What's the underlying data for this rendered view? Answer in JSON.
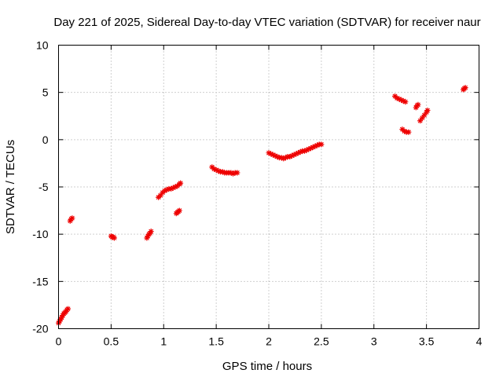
{
  "chart_data": {
    "type": "scatter",
    "title": "Day 221 of 2025, Sidereal Day-to-day VTEC variation (SDTVAR) for receiver naur",
    "xlabel": "GPS time / hours",
    "ylabel": "SDTVAR / TECUs",
    "xlim": [
      0,
      4
    ],
    "ylim": [
      -20,
      10
    ],
    "xticks": [
      0,
      0.5,
      1,
      1.5,
      2,
      2.5,
      3,
      3.5,
      4
    ],
    "xtick_labels": [
      "0",
      "0.5",
      "1",
      "1.5",
      "2",
      "2.5",
      "3",
      "3.5",
      "4"
    ],
    "yticks": [
      -20,
      -15,
      -10,
      -5,
      0,
      5,
      10
    ],
    "ytick_labels": [
      "-20",
      "-15",
      "-10",
      "-5",
      "0",
      "5",
      "10"
    ],
    "grid": true,
    "marker_color": "#ee0000",
    "series": [
      {
        "points": [
          [
            0.0,
            -19.4
          ],
          [
            0.01,
            -19.2
          ],
          [
            0.02,
            -19.0
          ],
          [
            0.03,
            -18.8
          ],
          [
            0.04,
            -18.6
          ],
          [
            0.05,
            -18.4
          ],
          [
            0.06,
            -18.3
          ],
          [
            0.07,
            -18.2
          ],
          [
            0.08,
            -18.0
          ],
          [
            0.09,
            -17.9
          ],
          [
            0.11,
            -8.6
          ],
          [
            0.12,
            -8.4
          ],
          [
            0.13,
            -8.3
          ],
          [
            0.5,
            -10.2
          ],
          [
            0.51,
            -10.3
          ],
          [
            0.52,
            -10.3
          ],
          [
            0.53,
            -10.4
          ],
          [
            0.84,
            -10.4
          ],
          [
            0.85,
            -10.2
          ],
          [
            0.86,
            -10.0
          ],
          [
            0.87,
            -9.9
          ],
          [
            0.88,
            -9.7
          ],
          [
            0.95,
            -6.1
          ],
          [
            0.97,
            -5.9
          ],
          [
            0.99,
            -5.6
          ],
          [
            1.01,
            -5.4
          ],
          [
            1.03,
            -5.3
          ],
          [
            1.05,
            -5.2
          ],
          [
            1.07,
            -5.2
          ],
          [
            1.09,
            -5.1
          ],
          [
            1.11,
            -5.0
          ],
          [
            1.13,
            -4.9
          ],
          [
            1.15,
            -4.7
          ],
          [
            1.16,
            -4.6
          ],
          [
            1.12,
            -7.8
          ],
          [
            1.13,
            -7.7
          ],
          [
            1.14,
            -7.6
          ],
          [
            1.15,
            -7.5
          ],
          [
            1.46,
            -2.9
          ],
          [
            1.48,
            -3.1
          ],
          [
            1.5,
            -3.2
          ],
          [
            1.52,
            -3.3
          ],
          [
            1.54,
            -3.4
          ],
          [
            1.56,
            -3.4
          ],
          [
            1.58,
            -3.5
          ],
          [
            1.6,
            -3.5
          ],
          [
            1.62,
            -3.5
          ],
          [
            1.64,
            -3.5
          ],
          [
            1.66,
            -3.6
          ],
          [
            1.68,
            -3.5
          ],
          [
            1.7,
            -3.5
          ],
          [
            2.0,
            -1.4
          ],
          [
            2.02,
            -1.5
          ],
          [
            2.04,
            -1.6
          ],
          [
            2.06,
            -1.7
          ],
          [
            2.08,
            -1.8
          ],
          [
            2.1,
            -1.9
          ],
          [
            2.12,
            -1.9
          ],
          [
            2.14,
            -2.0
          ],
          [
            2.16,
            -1.9
          ],
          [
            2.18,
            -1.8
          ],
          [
            2.2,
            -1.8
          ],
          [
            2.22,
            -1.7
          ],
          [
            2.24,
            -1.6
          ],
          [
            2.26,
            -1.5
          ],
          [
            2.28,
            -1.4
          ],
          [
            2.3,
            -1.3
          ],
          [
            2.32,
            -1.2
          ],
          [
            2.34,
            -1.2
          ],
          [
            2.36,
            -1.1
          ],
          [
            2.38,
            -1.0
          ],
          [
            2.4,
            -0.9
          ],
          [
            2.42,
            -0.8
          ],
          [
            2.44,
            -0.7
          ],
          [
            2.46,
            -0.6
          ],
          [
            2.48,
            -0.5
          ],
          [
            2.5,
            -0.5
          ],
          [
            3.2,
            4.6
          ],
          [
            3.22,
            4.4
          ],
          [
            3.24,
            4.3
          ],
          [
            3.26,
            4.2
          ],
          [
            3.28,
            4.1
          ],
          [
            3.3,
            4.0
          ],
          [
            3.27,
            1.1
          ],
          [
            3.29,
            0.9
          ],
          [
            3.31,
            0.8
          ],
          [
            3.33,
            0.8
          ],
          [
            3.4,
            3.4
          ],
          [
            3.41,
            3.6
          ],
          [
            3.42,
            3.7
          ],
          [
            3.44,
            2.0
          ],
          [
            3.46,
            2.3
          ],
          [
            3.48,
            2.6
          ],
          [
            3.5,
            2.9
          ],
          [
            3.51,
            3.1
          ],
          [
            3.85,
            5.3
          ],
          [
            3.86,
            5.4
          ],
          [
            3.87,
            5.5
          ]
        ]
      }
    ]
  }
}
